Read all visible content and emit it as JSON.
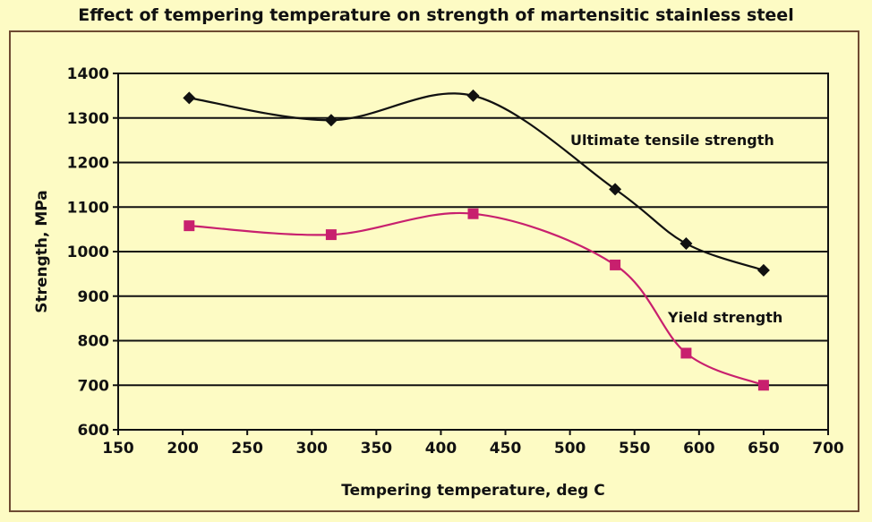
{
  "chart_data": {
    "type": "line",
    "title": "Effect of tempering temperature on strength of martensitic stainless steel",
    "xlabel": "Tempering temperature, deg C",
    "ylabel": "Strength, MPa",
    "xlim": [
      150,
      700
    ],
    "ylim": [
      600,
      1400
    ],
    "xticks": [
      150,
      200,
      250,
      300,
      350,
      400,
      450,
      500,
      550,
      600,
      650,
      700
    ],
    "yticks": [
      600,
      700,
      800,
      900,
      1000,
      1100,
      1200,
      1300,
      1400
    ],
    "grid": "horizontal",
    "series": [
      {
        "name": "Ultimate tensile strength",
        "color": "#111111",
        "marker": "diamond",
        "x": [
          205,
          315,
          425,
          535,
          590,
          650
        ],
        "y": [
          1345,
          1295,
          1350,
          1140,
          1018,
          958
        ]
      },
      {
        "name": "Yield strength",
        "color": "#c8206e",
        "marker": "square",
        "x": [
          205,
          315,
          425,
          535,
          590,
          650
        ],
        "y": [
          1058,
          1038,
          1085,
          970,
          772,
          700
        ]
      }
    ]
  }
}
